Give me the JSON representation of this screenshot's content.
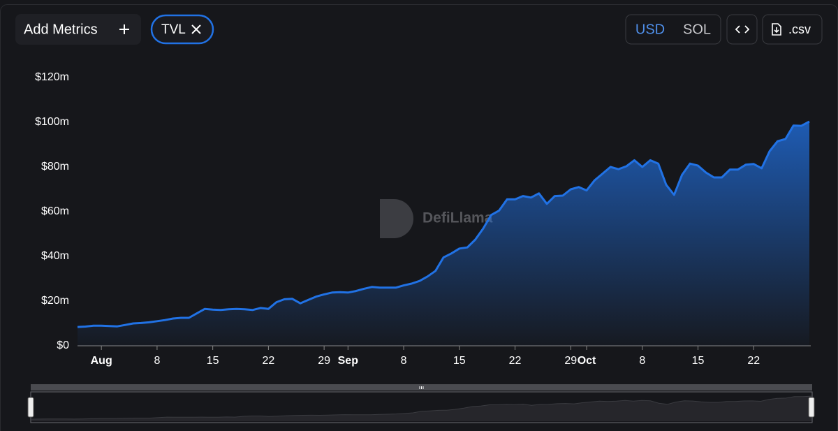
{
  "controls": {
    "add_metrics": "Add Metrics",
    "metric_chip": "TVL",
    "currencies": [
      "USD",
      "SOL"
    ],
    "csv": ".csv"
  },
  "chart_data": {
    "type": "area",
    "watermark": "DefiLlama",
    "color": "#2172e5",
    "grid": false,
    "x": [
      "Jul 29",
      "Jul 30",
      "Jul 31",
      "Aug 1",
      "Aug 2",
      "Aug 3",
      "Aug 4",
      "Aug 5",
      "Aug 6",
      "Aug 7",
      "Aug 8",
      "Aug 9",
      "Aug 10",
      "Aug 11",
      "Aug 12",
      "Aug 13",
      "Aug 14",
      "Aug 15",
      "Aug 16",
      "Aug 17",
      "Aug 18",
      "Aug 19",
      "Aug 20",
      "Aug 21",
      "Aug 22",
      "Aug 23",
      "Aug 24",
      "Aug 25",
      "Aug 26",
      "Aug 27",
      "Aug 28",
      "Aug 29",
      "Aug 30",
      "Aug 31",
      "Sep 1",
      "Sep 2",
      "Sep 3",
      "Sep 4",
      "Sep 5",
      "Sep 6",
      "Sep 7",
      "Sep 8",
      "Sep 9",
      "Sep 10",
      "Sep 11",
      "Sep 12",
      "Sep 13",
      "Sep 14",
      "Sep 15",
      "Sep 16",
      "Sep 17",
      "Sep 18",
      "Sep 19",
      "Sep 20",
      "Sep 21",
      "Sep 22",
      "Sep 23",
      "Sep 24",
      "Sep 25",
      "Sep 26",
      "Sep 27",
      "Sep 28",
      "Sep 29",
      "Sep 30",
      "Oct 1",
      "Oct 2",
      "Oct 3",
      "Oct 4",
      "Oct 5",
      "Oct 6",
      "Oct 7",
      "Oct 8",
      "Oct 9",
      "Oct 10",
      "Oct 11",
      "Oct 12",
      "Oct 13",
      "Oct 14",
      "Oct 15",
      "Oct 16",
      "Oct 17",
      "Oct 18",
      "Oct 19",
      "Oct 20",
      "Oct 21",
      "Oct 22",
      "Oct 23",
      "Oct 24",
      "Oct 25",
      "Oct 26",
      "Oct 27",
      "Oct 28",
      "Oct 29"
    ],
    "values": [
      8.4,
      8.6,
      9.0,
      9.0,
      8.8,
      8.7,
      9.3,
      10.0,
      10.2,
      10.5,
      11.0,
      11.5,
      12.2,
      12.5,
      12.5,
      14.5,
      16.5,
      16.2,
      16.0,
      16.3,
      16.5,
      16.3,
      16.0,
      16.9,
      16.5,
      19.5,
      20.8,
      21.0,
      19.0,
      20.5,
      22.0,
      23.0,
      23.8,
      24.0,
      23.8,
      24.5,
      25.5,
      26.3,
      26.0,
      26.0,
      26.0,
      27.0,
      27.8,
      29.0,
      31.0,
      33.5,
      39.5,
      41.3,
      43.5,
      44.0,
      47.5,
      52.5,
      58.5,
      60.5,
      65.5,
      65.5,
      67.0,
      66.3,
      68.2,
      63.5,
      67.0,
      67.2,
      70.0,
      71.0,
      69.5,
      74.0,
      77.0,
      80.0,
      79.0,
      80.3,
      83.0,
      80.0,
      83.0,
      81.5,
      72.0,
      67.5,
      76.5,
      81.5,
      80.6,
      77.5,
      75.3,
      75.3,
      78.8,
      78.8,
      81.0,
      81.3,
      79.4,
      87.0,
      91.5,
      92.5,
      98.5,
      98.4,
      100.3
    ],
    "ylim": [
      0,
      120
    ],
    "yticks": [
      {
        "value": 0,
        "label": "$0"
      },
      {
        "value": 20,
        "label": "$20m"
      },
      {
        "value": 40,
        "label": "$40m"
      },
      {
        "value": 60,
        "label": "$60m"
      },
      {
        "value": 80,
        "label": "$80m"
      },
      {
        "value": 100,
        "label": "$100m"
      },
      {
        "value": 120,
        "label": "$120m"
      }
    ],
    "xticks": [
      {
        "value": "Aug 1",
        "label": "Aug"
      },
      {
        "value": "Aug 8",
        "label": "8"
      },
      {
        "value": "Aug 15",
        "label": "15"
      },
      {
        "value": "Aug 22",
        "label": "22"
      },
      {
        "value": "Aug 29",
        "label": "29"
      },
      {
        "value": "Sep 1",
        "label": "Sep"
      },
      {
        "value": "Sep 8",
        "label": "8"
      },
      {
        "value": "Sep 15",
        "label": "15"
      },
      {
        "value": "Sep 22",
        "label": "22"
      },
      {
        "value": "Sep 29",
        "label": "29"
      },
      {
        "value": "Oct 1",
        "label": "Oct"
      },
      {
        "value": "Oct 8",
        "label": "8"
      },
      {
        "value": "Oct 15",
        "label": "15"
      },
      {
        "value": "Oct 22",
        "label": "22"
      }
    ]
  }
}
